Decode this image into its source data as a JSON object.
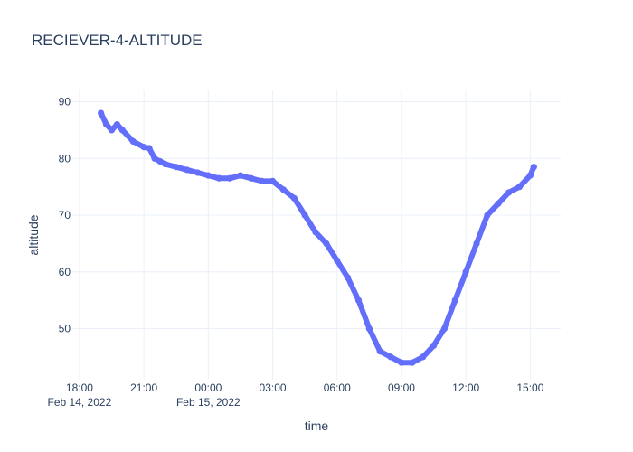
{
  "chart_data": {
    "type": "scatter",
    "title": "RECIEVER-4-ALTITUDE",
    "xlabel": "time",
    "ylabel": "altitude",
    "xlim": [
      "2022-02-14T17:40",
      "2022-02-15T16:25"
    ],
    "ylim": [
      41,
      92
    ],
    "grid": true,
    "color": "#636efa",
    "x_ticks": [
      {
        "t": "2022-02-14T18:00",
        "line1": "18:00",
        "line2": "Feb 14, 2022"
      },
      {
        "t": "2022-02-14T21:00",
        "line1": "21:00",
        "line2": ""
      },
      {
        "t": "2022-02-15T00:00",
        "line1": "00:00",
        "line2": "Feb 15, 2022"
      },
      {
        "t": "2022-02-15T03:00",
        "line1": "03:00",
        "line2": ""
      },
      {
        "t": "2022-02-15T06:00",
        "line1": "06:00",
        "line2": ""
      },
      {
        "t": "2022-02-15T09:00",
        "line1": "09:00",
        "line2": ""
      },
      {
        "t": "2022-02-15T12:00",
        "line1": "12:00",
        "line2": ""
      },
      {
        "t": "2022-02-15T15:00",
        "line1": "15:00",
        "line2": ""
      }
    ],
    "y_ticks": [
      50,
      60,
      70,
      80,
      90
    ],
    "x": [
      "2022-02-14T19:00",
      "2022-02-14T19:15",
      "2022-02-14T19:30",
      "2022-02-14T19:45",
      "2022-02-14T20:00",
      "2022-02-14T20:30",
      "2022-02-14T21:00",
      "2022-02-14T21:15",
      "2022-02-14T21:30",
      "2022-02-14T21:45",
      "2022-02-14T22:00",
      "2022-02-14T22:30",
      "2022-02-14T23:00",
      "2022-02-14T23:30",
      "2022-02-15T00:00",
      "2022-02-15T00:30",
      "2022-02-15T01:00",
      "2022-02-15T01:30",
      "2022-02-15T02:00",
      "2022-02-15T02:30",
      "2022-02-15T03:00",
      "2022-02-15T03:30",
      "2022-02-15T04:00",
      "2022-02-15T04:30",
      "2022-02-15T05:00",
      "2022-02-15T05:30",
      "2022-02-15T06:00",
      "2022-02-15T06:30",
      "2022-02-15T07:00",
      "2022-02-15T07:30",
      "2022-02-15T08:00",
      "2022-02-15T08:30",
      "2022-02-15T09:00",
      "2022-02-15T09:30",
      "2022-02-15T10:00",
      "2022-02-15T10:30",
      "2022-02-15T11:00",
      "2022-02-15T11:30",
      "2022-02-15T12:00",
      "2022-02-15T12:30",
      "2022-02-15T13:00",
      "2022-02-15T13:30",
      "2022-02-15T14:00",
      "2022-02-15T14:30",
      "2022-02-15T15:00",
      "2022-02-15T15:10"
    ],
    "y": [
      88,
      86,
      85,
      86,
      85,
      83,
      82,
      81.8,
      80,
      79.5,
      79,
      78.5,
      78,
      77.5,
      77,
      76.5,
      76.5,
      77,
      76.5,
      76,
      76,
      74.5,
      73,
      70,
      67,
      65,
      62,
      59,
      55,
      50,
      46,
      45,
      44,
      44,
      45,
      47,
      50,
      55,
      60,
      65,
      70,
      72,
      74,
      75,
      77,
      78.5
    ]
  }
}
